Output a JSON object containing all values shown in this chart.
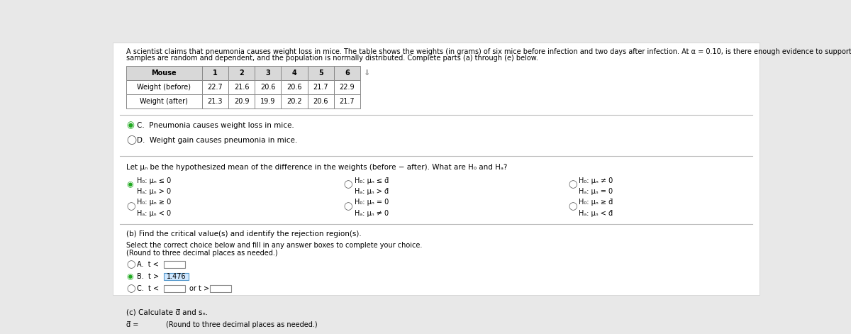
{
  "bg_color": "#e8e8e8",
  "panel_color": "#ffffff",
  "title_text": "A scientist claims that pneumonia causes weight loss in mice. The table shows the weights (in grams) of six mice before infection and two days after infection. At α = 0.10, is there enough evidence to support the scientist’s claim? Assume the",
  "title_text2": "samples are random and dependent, and the population is normally distributed. Complete parts (a) through (e) below.",
  "table_headers": [
    "Mouse",
    "1",
    "2",
    "3",
    "4",
    "5",
    "6"
  ],
  "table_row1": [
    "Weight (before)",
    "22.7",
    "21.6",
    "20.6",
    "20.6",
    "21.7",
    "22.9"
  ],
  "table_row2": [
    "Weight (after)",
    "21.3",
    "20.9",
    "19.9",
    "20.2",
    "20.6",
    "21.7"
  ],
  "option_C_text": "C.  Pneumonia causes weight loss in mice.",
  "option_D_text": "D.  Weight gain causes pneumonia in mice.",
  "hypotheses_intro": "Let μₙ be the hypothesized mean of the difference in the weights (before − after). What are H₀ and Hₐ?",
  "optA_H0": "H₀: μₙ ≤ 0",
  "optA_Ha": "Hₐ: μₙ > 0",
  "optB_H0": "H₀: μₙ ≤ d̄",
  "optB_Ha": "Hₐ: μₙ > d̄",
  "optC_H0": "H₀: μₙ ≠ 0",
  "optC_Ha": "Hₐ: μₙ = 0",
  "optD_H0": "H₀: μₙ ≥ 0",
  "optD_Ha": "Hₐ: μₙ < 0",
  "optE_H0": "H₀: μₙ = 0",
  "optE_Ha": "Hₐ: μₙ ≠ 0",
  "optF_H0": "H₀: μₙ ≥ d̄",
  "optF_Ha": "Hₐ: μₙ < d̄",
  "part_b_title": "(b) Find the critical value(s) and identify the rejection region(s).",
  "part_b_sub1": "Select the correct choice below and fill in any answer boxes to complete your choice.",
  "part_b_sub2": "(Round to three decimal places as needed.)",
  "part_c_title": "(c) Calculate d̅ and sₙ.",
  "part_c_d": "d̅ =      (Round to three decimal places as needed.)",
  "critical_value": "1.476"
}
